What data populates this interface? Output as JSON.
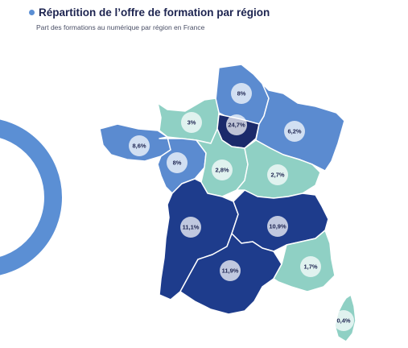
{
  "header": {
    "title": "Répartition de l’offre de formation par région",
    "subtitle": "Part des formations au numérique par région en France"
  },
  "colors": {
    "bullet": "#5b8fd4",
    "ring": "#5b8fd4",
    "dark": "#1e3c8c",
    "darkest": "#1b2a6b",
    "mid": "#5b8bd0",
    "light": "#8fd0c4"
  },
  "regions": [
    {
      "name": "Hauts-de-France",
      "value": "8%"
    },
    {
      "name": "Normandie",
      "value": "3%"
    },
    {
      "name": "Île-de-France",
      "value": "24,7%"
    },
    {
      "name": "Grand Est",
      "value": "6,2%"
    },
    {
      "name": "Bretagne",
      "value": "8,6%"
    },
    {
      "name": "Pays de la Loire",
      "value": "8%"
    },
    {
      "name": "Centre-Val de Loire",
      "value": "2,8%"
    },
    {
      "name": "Bourgogne-Franche-Comté",
      "value": "2,7%"
    },
    {
      "name": "Nouvelle-Aquitaine",
      "value": "11,1%"
    },
    {
      "name": "Auvergne-Rhône-Alpes",
      "value": "10,9%"
    },
    {
      "name": "Occitanie",
      "value": "11,9%"
    },
    {
      "name": "Provence-Alpes-Côte d'Azur",
      "value": "1,7%"
    },
    {
      "name": "Corse",
      "value": "0,4%"
    }
  ]
}
